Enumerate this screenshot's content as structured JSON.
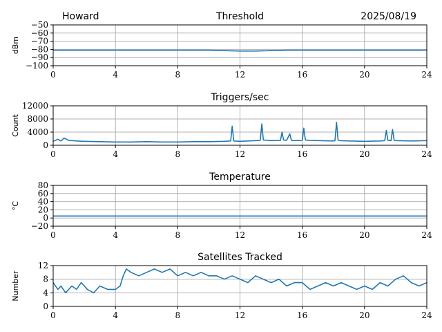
{
  "header": {
    "station": "Howard",
    "date": "2025/08/19"
  },
  "colors": {
    "series": "#1f77b4",
    "grid": "#b0b0b0"
  },
  "chart_data": [
    {
      "type": "line",
      "title": "Threshold",
      "xlabel": "",
      "ylabel": "dBm",
      "xlim": [
        0,
        24
      ],
      "ylim": [
        -100,
        -50
      ],
      "xticks": [
        "0",
        "4",
        "8",
        "12",
        "16",
        "20",
        "24"
      ],
      "yticks": [
        "−50",
        "−60",
        "−70",
        "−80",
        "−90",
        "−100"
      ],
      "grid": true,
      "series": [
        {
          "x": [
            0,
            1,
            2,
            3,
            4,
            5,
            6,
            7,
            8,
            9,
            10,
            11,
            12,
            13,
            14,
            15,
            16,
            17,
            18,
            19,
            20,
            21,
            22,
            23,
            24
          ],
          "values": [
            -81,
            -81,
            -81,
            -81,
            -81,
            -81,
            -81,
            -81,
            -81,
            -81,
            -81,
            -81.5,
            -82,
            -82,
            -81.5,
            -81,
            -81,
            -81,
            -81,
            -81,
            -81,
            -81,
            -81,
            -81,
            -81
          ]
        }
      ]
    },
    {
      "type": "line",
      "title": "Triggers/sec",
      "xlabel": "",
      "ylabel": "Count",
      "xlim": [
        0,
        24
      ],
      "ylim": [
        0,
        12000
      ],
      "xticks": [
        "0",
        "4",
        "8",
        "12",
        "16",
        "20",
        "24"
      ],
      "yticks": [
        "0",
        "4000",
        "8000",
        "12000"
      ],
      "grid": true,
      "series": [
        {
          "x": [
            0,
            0.3,
            0.5,
            0.7,
            1,
            1.5,
            2,
            3,
            4,
            5,
            6,
            7,
            8,
            9,
            10,
            11,
            11.4,
            11.5,
            11.6,
            12,
            13,
            13.3,
            13.4,
            13.5,
            14,
            14.6,
            14.7,
            14.8,
            15,
            15.2,
            15.3,
            15.4,
            16,
            16.1,
            16.2,
            16.5,
            17,
            18,
            18.1,
            18.2,
            18.3,
            18.4,
            19,
            20,
            21,
            21.3,
            21.4,
            21.5,
            21.7,
            21.8,
            21.9,
            22,
            23,
            24
          ],
          "values": [
            1200,
            1800,
            1300,
            2200,
            1500,
            1300,
            1200,
            1100,
            1000,
            1000,
            1100,
            1000,
            1000,
            1100,
            1100,
            1200,
            1300,
            5800,
            1300,
            1200,
            1400,
            1500,
            6500,
            1600,
            1400,
            1500,
            4000,
            1600,
            1500,
            3500,
            1500,
            1400,
            1500,
            5200,
            1600,
            1500,
            1400,
            1300,
            1400,
            7000,
            1600,
            1400,
            1300,
            1200,
            1300,
            1400,
            4500,
            1500,
            1400,
            4800,
            1500,
            1400,
            1300,
            1400
          ]
        }
      ]
    },
    {
      "type": "line",
      "title": "Temperature",
      "xlabel": "",
      "ylabel": "°C",
      "xlim": [
        0,
        24
      ],
      "ylim": [
        -20,
        80
      ],
      "xticks": [
        "0",
        "4",
        "8",
        "12",
        "16",
        "20",
        "24"
      ],
      "yticks": [
        "80",
        "60",
        "40",
        "20",
        "0",
        "−20"
      ],
      "grid": true,
      "series": [
        {
          "x": [
            0,
            6,
            12,
            18,
            24
          ],
          "values": [
            5,
            5,
            5,
            5,
            5
          ]
        }
      ]
    },
    {
      "type": "line",
      "title": "Satellites Tracked",
      "xlabel": "",
      "ylabel": "Number",
      "xlim": [
        0,
        24
      ],
      "ylim": [
        0,
        12
      ],
      "xticks": [
        "0",
        "4",
        "8",
        "12",
        "16",
        "20",
        "24"
      ],
      "yticks": [
        "12",
        "8",
        "4",
        "0"
      ],
      "grid": true,
      "series": [
        {
          "x": [
            0,
            0.3,
            0.5,
            0.8,
            1.2,
            1.5,
            1.8,
            2.2,
            2.6,
            3,
            3.5,
            4,
            4.3,
            4.5,
            4.7,
            5,
            5.5,
            6,
            6.5,
            7,
            7.5,
            8,
            8.5,
            9,
            9.5,
            10,
            10.5,
            11,
            11.5,
            12,
            12.5,
            13,
            13.5,
            14,
            14.5,
            15,
            15.5,
            16,
            16.5,
            17,
            17.5,
            18,
            18.5,
            19,
            19.5,
            20,
            20.5,
            21,
            21.5,
            22,
            22.5,
            23,
            23.5,
            24
          ],
          "values": [
            7,
            5,
            6,
            4,
            6,
            5,
            7,
            5,
            4,
            6,
            5,
            5,
            6,
            9,
            11,
            10,
            9,
            10,
            11,
            10,
            11,
            9,
            10,
            9,
            10,
            9,
            9,
            8,
            9,
            8,
            7,
            9,
            8,
            7,
            8,
            6,
            7,
            7,
            5,
            6,
            7,
            6,
            7,
            6,
            5,
            6,
            5,
            7,
            6,
            8,
            9,
            7,
            6,
            7
          ]
        }
      ]
    }
  ]
}
